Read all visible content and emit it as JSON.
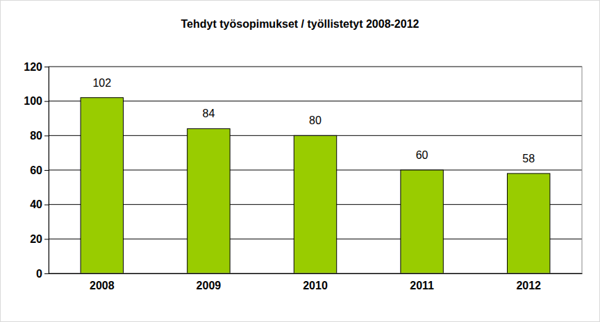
{
  "chart_data": {
    "type": "bar",
    "title": "Tehdyt työsopimukset / työllistetyt 2008-2012",
    "categories": [
      "2008",
      "2009",
      "2010",
      "2011",
      "2012"
    ],
    "values": [
      102,
      84,
      80,
      60,
      58
    ],
    "color": "#99cc00",
    "ylim": [
      0,
      120
    ],
    "yticks": [
      0,
      20,
      40,
      60,
      80,
      100,
      120
    ],
    "grid": true,
    "data_labels": true
  }
}
